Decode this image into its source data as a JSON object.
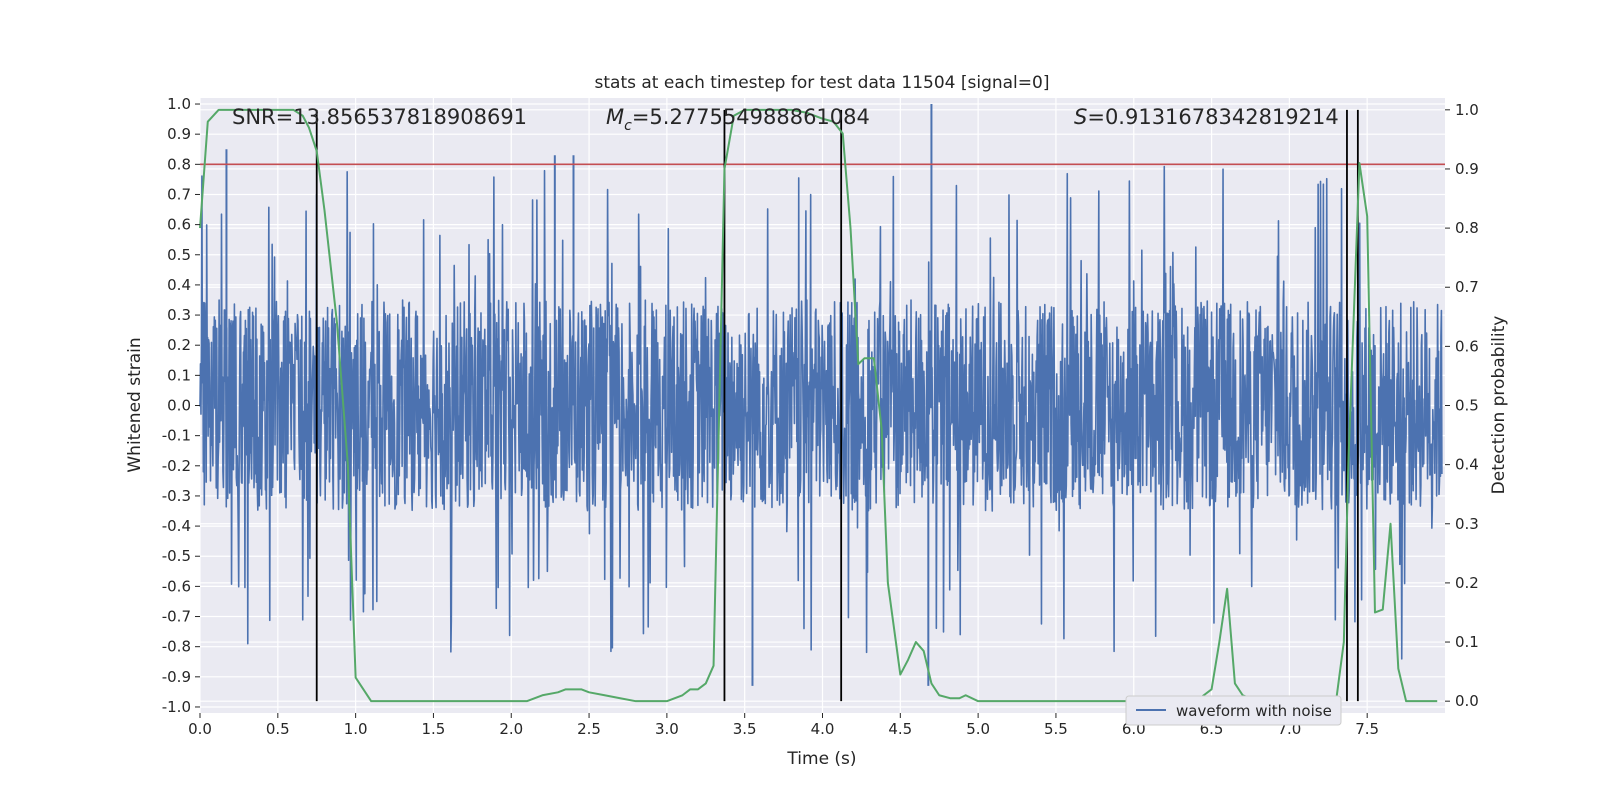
{
  "chart_data": {
    "type": "line",
    "title": "stats at each timestep for test data 11504 [signal=0]",
    "xlabel": "Time (s)",
    "ylabel": "Whitened strain",
    "y2label": "Detection probability",
    "xlim": [
      0.0,
      8.0
    ],
    "ylim": [
      -1.02,
      1.02
    ],
    "y2lim": [
      -0.02,
      1.02
    ],
    "xticks": [
      "0.0",
      "0.5",
      "1.0",
      "1.5",
      "2.0",
      "2.5",
      "3.0",
      "3.5",
      "4.0",
      "4.5",
      "5.0",
      "5.5",
      "6.0",
      "6.5",
      "7.0",
      "7.5"
    ],
    "yticks": [
      "1.0",
      "0.9",
      "0.8",
      "0.7",
      "0.6",
      "0.5",
      "0.4",
      "0.3",
      "0.2",
      "0.1",
      "0.0",
      "-0.1",
      "-0.2",
      "-0.3",
      "-0.4",
      "-0.5",
      "-0.6",
      "-0.7",
      "-0.8",
      "-0.9",
      "-1.0"
    ],
    "y2ticks": [
      "1.0",
      "0.9",
      "0.8",
      "0.7",
      "0.6",
      "0.5",
      "0.4",
      "0.3",
      "0.2",
      "0.1",
      "0.0"
    ],
    "grid": true,
    "legend_placement": "lower-right",
    "annotations": {
      "snr": "SNR=13.856537818908691",
      "mc_symbol": "M",
      "mc_sub": "c",
      "mc_value": "=5.277554988861084",
      "s_symbol": "S",
      "s_value": "=0.9131678342819214"
    },
    "series": [
      {
        "name": "waveform with noise",
        "color": "#4c72b0",
        "description_kind": "noise waveform, bulk amplitude about ±0.35, peaks to +1.0 and -0.93",
        "envelope": {
          "bulk_amplitude": 0.35,
          "max_peak": 1.0,
          "min_peak": -0.93
        }
      },
      {
        "name": "",
        "color": "#55a868",
        "axis": "secondary",
        "x": [
          0.0,
          0.05,
          0.12,
          0.2,
          0.4,
          0.6,
          0.66,
          0.7,
          0.75,
          0.8,
          0.88,
          0.95,
          1.0,
          1.1,
          1.2,
          1.3,
          1.4,
          1.5,
          1.6,
          1.7,
          1.8,
          1.9,
          2.0,
          2.1,
          2.2,
          2.3,
          2.35,
          2.4,
          2.45,
          2.5,
          2.6,
          2.7,
          2.8,
          2.9,
          3.0,
          3.1,
          3.15,
          3.2,
          3.25,
          3.3,
          3.37,
          3.43,
          3.5,
          3.6,
          3.7,
          3.8,
          3.9,
          4.0,
          4.07,
          4.13,
          4.18,
          4.23,
          4.27,
          4.33,
          4.38,
          4.42,
          4.5,
          4.55,
          4.6,
          4.65,
          4.7,
          4.75,
          4.82,
          4.88,
          4.92,
          5.0,
          5.1,
          5.2,
          5.3,
          5.4,
          5.5,
          5.6,
          5.7,
          5.8,
          5.9,
          6.0,
          6.1,
          6.2,
          6.3,
          6.4,
          6.45,
          6.5,
          6.55,
          6.6,
          6.65,
          6.7,
          6.8,
          6.9,
          7.0,
          7.1,
          7.15,
          7.2,
          7.3,
          7.35,
          7.38,
          7.45,
          7.5,
          7.55,
          7.6,
          7.65,
          7.7,
          7.75,
          7.8,
          7.85,
          7.9,
          7.95
        ],
        "y": [
          0.8,
          0.98,
          1.0,
          1.0,
          1.0,
          1.0,
          0.99,
          0.97,
          0.93,
          0.83,
          0.64,
          0.4,
          0.04,
          0.0,
          0.0,
          0.0,
          0.0,
          0.0,
          0.0,
          0.0,
          0.0,
          0.0,
          0.0,
          0.0,
          0.01,
          0.015,
          0.02,
          0.02,
          0.02,
          0.015,
          0.01,
          0.005,
          0.0,
          0.0,
          0.0,
          0.01,
          0.02,
          0.02,
          0.03,
          0.06,
          0.9,
          0.99,
          1.0,
          1.0,
          1.0,
          1.0,
          0.995,
          0.985,
          0.98,
          0.96,
          0.8,
          0.57,
          0.58,
          0.58,
          0.46,
          0.2,
          0.045,
          0.07,
          0.1,
          0.085,
          0.03,
          0.01,
          0.005,
          0.005,
          0.01,
          0.0,
          0.0,
          0.0,
          0.0,
          0.0,
          0.0,
          0.0,
          0.0,
          0.0,
          0.0,
          0.0,
          0.0,
          0.0,
          0.0,
          0.0,
          0.01,
          0.02,
          0.1,
          0.19,
          0.03,
          0.01,
          0.0,
          0.0,
          0.0,
          0.0,
          0.005,
          0.0,
          0.0,
          0.1,
          0.41,
          0.91,
          0.82,
          0.15,
          0.155,
          0.3,
          0.055,
          0.0,
          0.0,
          0.0,
          0.0,
          0.0
        ]
      }
    ],
    "threshold_line": {
      "value": 0.8,
      "color": "#c44e52",
      "axis": "primary"
    },
    "event_lines": {
      "x": [
        0.75,
        3.37,
        4.12,
        7.37,
        7.44
      ],
      "color": "#000000"
    }
  }
}
